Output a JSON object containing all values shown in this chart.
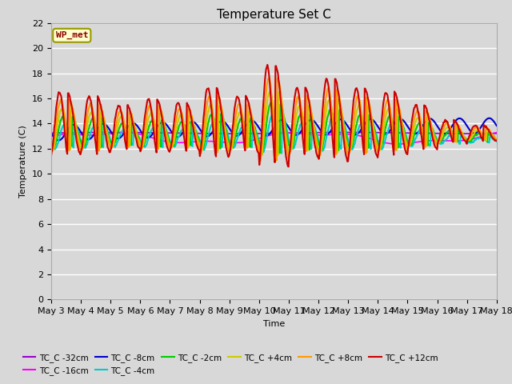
{
  "title": "Temperature Set C",
  "xlabel": "Time",
  "ylabel": "Temperature (C)",
  "ylim": [
    0,
    22
  ],
  "xlim": [
    0,
    15
  ],
  "bg_color": "#d8d8d8",
  "x_tick_labels": [
    "May 3",
    "May 4",
    "May 5",
    "May 6",
    "May 7",
    "May 8",
    "May 9",
    "May 10",
    "May 11",
    "May 12",
    "May 13",
    "May 14",
    "May 15",
    "May 16",
    "May 17",
    "May 18"
  ],
  "series": {
    "TC_C -32cm": {
      "color": "#9900cc",
      "lw": 1.2
    },
    "TC_C -16cm": {
      "color": "#ff00ff",
      "lw": 1.2
    },
    "TC_C -8cm": {
      "color": "#0000cc",
      "lw": 1.5
    },
    "TC_C -4cm": {
      "color": "#00cccc",
      "lw": 1.5
    },
    "TC_C -2cm": {
      "color": "#00cc00",
      "lw": 1.5
    },
    "TC_C +4cm": {
      "color": "#cccc00",
      "lw": 1.5
    },
    "TC_C +8cm": {
      "color": "#ff9900",
      "lw": 1.5
    },
    "TC_C +12cm": {
      "color": "#cc0000",
      "lw": 1.5
    }
  },
  "wp_met_box": {
    "text": "WP_met",
    "facecolor": "#ffffcc",
    "edgecolor": "#999900",
    "textcolor": "#8b0000",
    "fontsize": 8
  }
}
